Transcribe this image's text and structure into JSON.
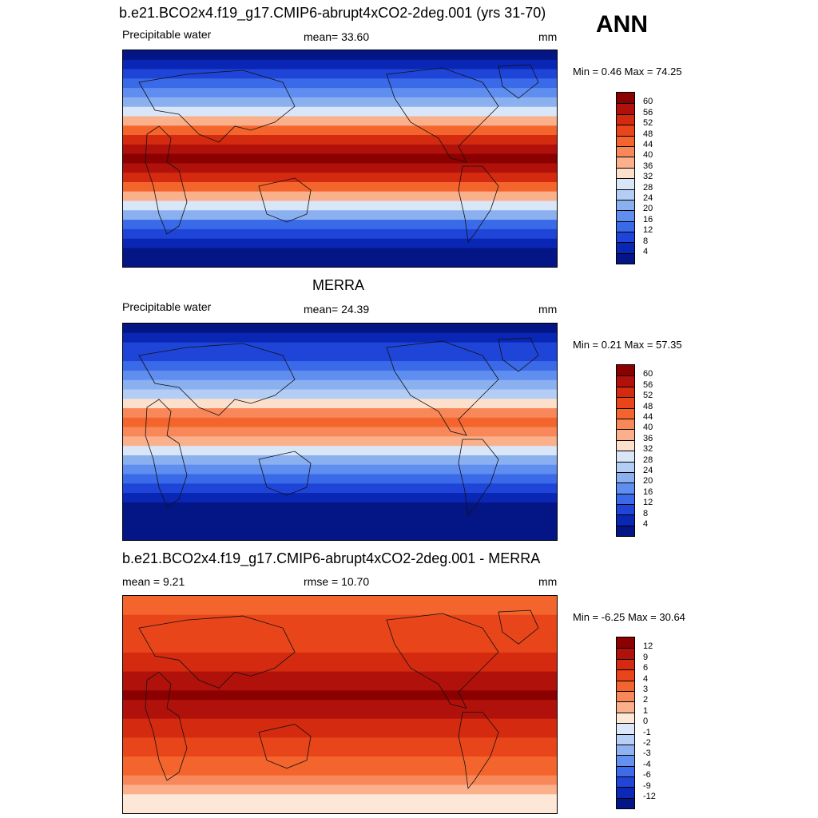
{
  "season": "ANN",
  "panels": [
    {
      "title": "b.e21.BCO2x4.f19_g17.CMIP6-abrupt4xCO2-2deg.001 (yrs 31-70)",
      "left_label": "Precipitable water",
      "center_label": "mean=  33.60",
      "units": "mm",
      "minmax": "Min =   0.46 Max =  74.25",
      "colorbar": {
        "labels": [
          "60",
          "56",
          "52",
          "48",
          "44",
          "40",
          "36",
          "32",
          "28",
          "24",
          "20",
          "16",
          "12",
          "8",
          "4"
        ],
        "colors": [
          "#8b0000",
          "#b0120b",
          "#d42a10",
          "#e8451a",
          "#f4652d",
          "#f8885a",
          "#fbb08c",
          "#fde0cc",
          "#d8e6f8",
          "#b3cdf5",
          "#8ab0f0",
          "#5f8ef0",
          "#3a6ae8",
          "#1f45d8",
          "#0a26b4",
          "#041686"
        ]
      },
      "map_style": "model"
    },
    {
      "title": "MERRA",
      "left_label": "Precipitable water",
      "center_label": "mean=  24.39",
      "units": "mm",
      "minmax": "Min =   0.21 Max =  57.35",
      "colorbar": {
        "labels": [
          "60",
          "56",
          "52",
          "48",
          "44",
          "40",
          "36",
          "32",
          "28",
          "24",
          "20",
          "16",
          "12",
          "8",
          "4"
        ],
        "colors": [
          "#8b0000",
          "#b0120b",
          "#d42a10",
          "#e8451a",
          "#f4652d",
          "#f8885a",
          "#fbb08c",
          "#fde0cc",
          "#d8e6f8",
          "#b3cdf5",
          "#8ab0f0",
          "#5f8ef0",
          "#3a6ae8",
          "#1f45d8",
          "#0a26b4",
          "#041686"
        ]
      },
      "map_style": "obs"
    },
    {
      "title": "b.e21.BCO2x4.f19_g17.CMIP6-abrupt4xCO2-2deg.001 - MERRA",
      "left_label": "mean =   9.21",
      "center_label": "rmse =  10.70",
      "units": "mm",
      "minmax": "Min =  -6.25 Max =  30.64",
      "colorbar": {
        "labels": [
          "12",
          "9",
          "6",
          "4",
          "3",
          "2",
          "1",
          "0",
          "-1",
          "-2",
          "-3",
          "-4",
          "-6",
          "-9",
          "-12"
        ],
        "colors": [
          "#8b0000",
          "#b0120b",
          "#d42a10",
          "#e8451a",
          "#f4652d",
          "#f8885a",
          "#fbb08c",
          "#fde8d8",
          "#dce8fa",
          "#b8cff6",
          "#8fb2f2",
          "#6490f0",
          "#3e6ce8",
          "#2046d8",
          "#0c28b6",
          "#041686"
        ]
      },
      "map_style": "diff"
    }
  ]
}
